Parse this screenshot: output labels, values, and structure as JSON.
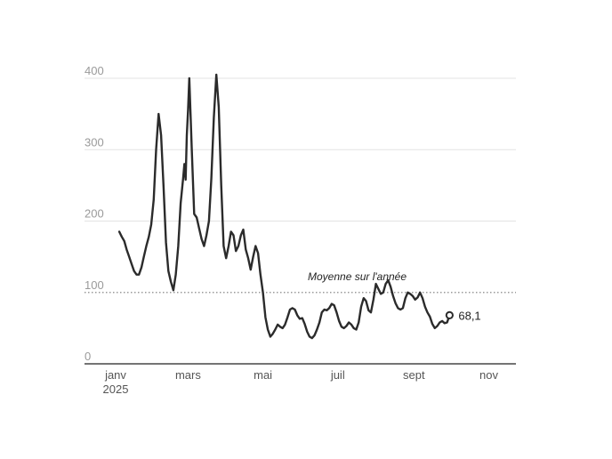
{
  "chart_data": {
    "type": "line",
    "title": "",
    "xlabel": "",
    "ylabel": "",
    "ylim": [
      0,
      400
    ],
    "y_ticks": [
      0,
      100,
      200,
      300,
      400
    ],
    "grid": true,
    "x_tick_labels": [
      {
        "label": "janv",
        "sublabel": "2025",
        "date": "2025-01-01"
      },
      {
        "label": "mars",
        "date": "2025-03-01"
      },
      {
        "label": "mai",
        "date": "2025-05-01"
      },
      {
        "label": "juil",
        "date": "2025-07-01"
      },
      {
        "label": "sept",
        "date": "2025-09-01"
      },
      {
        "label": "nov",
        "date": "2025-11-01"
      }
    ],
    "average": {
      "value": 100,
      "label": "Moyenne sur l'année"
    },
    "last_value_label": "68,1",
    "series": [
      {
        "color": "#2b2b2b",
        "points": [
          [
            "2025-01-04",
            185
          ],
          [
            "2025-01-06",
            178
          ],
          [
            "2025-01-08",
            172
          ],
          [
            "2025-01-10",
            160
          ],
          [
            "2025-01-12",
            150
          ],
          [
            "2025-01-14",
            140
          ],
          [
            "2025-01-16",
            130
          ],
          [
            "2025-01-18",
            125
          ],
          [
            "2025-01-20",
            125
          ],
          [
            "2025-01-22",
            135
          ],
          [
            "2025-01-24",
            150
          ],
          [
            "2025-01-26",
            165
          ],
          [
            "2025-01-28",
            178
          ],
          [
            "2025-01-30",
            195
          ],
          [
            "2025-02-01",
            230
          ],
          [
            "2025-02-03",
            300
          ],
          [
            "2025-02-05",
            350
          ],
          [
            "2025-02-07",
            320
          ],
          [
            "2025-02-09",
            250
          ],
          [
            "2025-02-11",
            170
          ],
          [
            "2025-02-13",
            130
          ],
          [
            "2025-02-15",
            115
          ],
          [
            "2025-02-17",
            103
          ],
          [
            "2025-02-19",
            125
          ],
          [
            "2025-02-21",
            165
          ],
          [
            "2025-02-23",
            225
          ],
          [
            "2025-02-25",
            260
          ],
          [
            "2025-02-26",
            280
          ],
          [
            "2025-02-27",
            258
          ],
          [
            "2025-02-28",
            320
          ],
          [
            "2025-03-01",
            355
          ],
          [
            "2025-03-02",
            400
          ],
          [
            "2025-03-04",
            300
          ],
          [
            "2025-03-06",
            210
          ],
          [
            "2025-03-08",
            205
          ],
          [
            "2025-03-10",
            190
          ],
          [
            "2025-03-12",
            175
          ],
          [
            "2025-03-14",
            165
          ],
          [
            "2025-03-16",
            180
          ],
          [
            "2025-03-18",
            200
          ],
          [
            "2025-03-20",
            260
          ],
          [
            "2025-03-22",
            345
          ],
          [
            "2025-03-24",
            405
          ],
          [
            "2025-03-26",
            360
          ],
          [
            "2025-03-28",
            250
          ],
          [
            "2025-03-30",
            165
          ],
          [
            "2025-04-01",
            148
          ],
          [
            "2025-04-03",
            165
          ],
          [
            "2025-04-05",
            185
          ],
          [
            "2025-04-07",
            180
          ],
          [
            "2025-04-09",
            158
          ],
          [
            "2025-04-11",
            165
          ],
          [
            "2025-04-13",
            180
          ],
          [
            "2025-04-15",
            188
          ],
          [
            "2025-04-17",
            160
          ],
          [
            "2025-04-19",
            148
          ],
          [
            "2025-04-21",
            132
          ],
          [
            "2025-04-23",
            150
          ],
          [
            "2025-04-25",
            165
          ],
          [
            "2025-04-27",
            155
          ],
          [
            "2025-04-29",
            125
          ],
          [
            "2025-05-01",
            100
          ],
          [
            "2025-05-03",
            65
          ],
          [
            "2025-05-05",
            48
          ],
          [
            "2025-05-07",
            38
          ],
          [
            "2025-05-09",
            42
          ],
          [
            "2025-05-11",
            48
          ],
          [
            "2025-05-13",
            55
          ],
          [
            "2025-05-15",
            52
          ],
          [
            "2025-05-17",
            50
          ],
          [
            "2025-05-19",
            55
          ],
          [
            "2025-05-21",
            65
          ],
          [
            "2025-05-23",
            76
          ],
          [
            "2025-05-25",
            78
          ],
          [
            "2025-05-27",
            76
          ],
          [
            "2025-05-29",
            68
          ],
          [
            "2025-05-31",
            63
          ],
          [
            "2025-06-02",
            64
          ],
          [
            "2025-06-04",
            56
          ],
          [
            "2025-06-06",
            45
          ],
          [
            "2025-06-08",
            38
          ],
          [
            "2025-06-10",
            36
          ],
          [
            "2025-06-12",
            40
          ],
          [
            "2025-06-14",
            48
          ],
          [
            "2025-06-16",
            58
          ],
          [
            "2025-06-18",
            72
          ],
          [
            "2025-06-20",
            76
          ],
          [
            "2025-06-22",
            75
          ],
          [
            "2025-06-24",
            78
          ],
          [
            "2025-06-26",
            84
          ],
          [
            "2025-06-28",
            82
          ],
          [
            "2025-06-30",
            72
          ],
          [
            "2025-07-02",
            60
          ],
          [
            "2025-07-04",
            52
          ],
          [
            "2025-07-06",
            50
          ],
          [
            "2025-07-08",
            53
          ],
          [
            "2025-07-10",
            58
          ],
          [
            "2025-07-12",
            55
          ],
          [
            "2025-07-14",
            50
          ],
          [
            "2025-07-16",
            48
          ],
          [
            "2025-07-18",
            58
          ],
          [
            "2025-07-20",
            80
          ],
          [
            "2025-07-22",
            92
          ],
          [
            "2025-07-24",
            88
          ],
          [
            "2025-07-26",
            75
          ],
          [
            "2025-07-28",
            72
          ],
          [
            "2025-07-30",
            90
          ],
          [
            "2025-08-01",
            112
          ],
          [
            "2025-08-03",
            105
          ],
          [
            "2025-08-05",
            98
          ],
          [
            "2025-08-07",
            100
          ],
          [
            "2025-08-09",
            112
          ],
          [
            "2025-08-11",
            117
          ],
          [
            "2025-08-13",
            108
          ],
          [
            "2025-08-15",
            95
          ],
          [
            "2025-08-17",
            85
          ],
          [
            "2025-08-19",
            78
          ],
          [
            "2025-08-21",
            76
          ],
          [
            "2025-08-23",
            78
          ],
          [
            "2025-08-25",
            92
          ],
          [
            "2025-08-27",
            100
          ],
          [
            "2025-08-29",
            98
          ],
          [
            "2025-08-31",
            95
          ],
          [
            "2025-09-02",
            90
          ],
          [
            "2025-09-04",
            93
          ],
          [
            "2025-09-06",
            100
          ],
          [
            "2025-09-08",
            92
          ],
          [
            "2025-09-10",
            80
          ],
          [
            "2025-09-12",
            72
          ],
          [
            "2025-09-14",
            66
          ],
          [
            "2025-09-16",
            56
          ],
          [
            "2025-09-18",
            50
          ],
          [
            "2025-09-20",
            53
          ],
          [
            "2025-09-22",
            58
          ],
          [
            "2025-09-24",
            60
          ],
          [
            "2025-09-26",
            57
          ],
          [
            "2025-09-28",
            58
          ],
          [
            "2025-09-30",
            68.1
          ]
        ]
      }
    ]
  }
}
